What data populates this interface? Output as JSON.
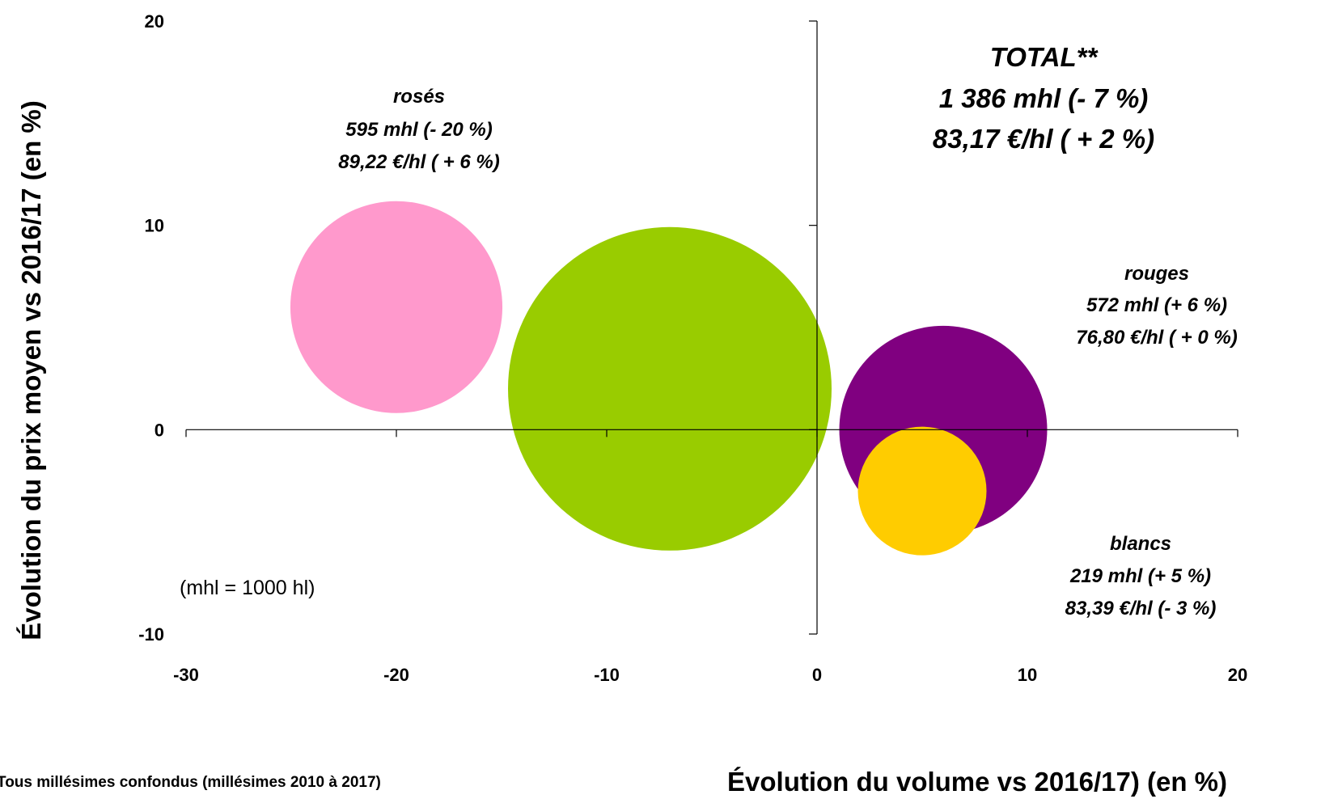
{
  "chart_data": {
    "type": "scatter",
    "subtype": "bubble",
    "xlabel": "Évolution du volume vs 2016/17) (en %)",
    "ylabel": "Évolution du prix moyen vs 2016/17 (en %)",
    "xlim": [
      -30,
      20
    ],
    "ylim": [
      -10,
      20
    ],
    "x_ticks": [
      "-30",
      "-20",
      "-10",
      "0",
      "10",
      "20"
    ],
    "y_ticks": [
      "20",
      "10",
      "0",
      "-10"
    ],
    "grid": false,
    "note": "(mhl = 1000 hl)",
    "footnote": "Tous millésimes confondus (millésimes 2010 à 2017)",
    "bubbles": [
      {
        "name": "rosés",
        "volume": 595,
        "x": -20,
        "y": 6,
        "color": "#ff99cc",
        "label_lines": [
          "rosés",
          "595 mhl (- 20 %)",
          "89,22 €/hl ( + 6 %)"
        ]
      },
      {
        "name": "TOTAL**",
        "volume": 1386,
        "x": -7,
        "y": 2,
        "color": "#99cc00",
        "label_lines": [
          "TOTAL**",
          "1 386 mhl (- 7 %)",
          "83,17 €/hl ( + 2 %)"
        ]
      },
      {
        "name": "rouges",
        "volume": 572,
        "x": 6,
        "y": 0,
        "color": "#800080",
        "label_lines": [
          "rouges",
          "572 mhl (+ 6 %)",
          "76,80 €/hl ( + 0 %)"
        ]
      },
      {
        "name": "blancs",
        "volume": 219,
        "x": 5,
        "y": -3,
        "color": "#ffcc00",
        "label_lines": [
          "blancs",
          "219 mhl (+ 5 %)",
          "83,39 €/hl (- 3 %)"
        ]
      }
    ]
  }
}
